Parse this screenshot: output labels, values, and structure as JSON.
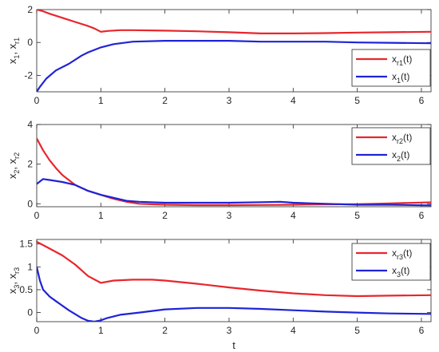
{
  "chart_data": [
    {
      "type": "line",
      "ylabel": {
        "p1": "x",
        "s1": "1",
        "p2": ", x",
        "s2": "r1"
      },
      "xlim": [
        0,
        6.15
      ],
      "ylim": [
        -3,
        2
      ],
      "xticks": [
        "0",
        "1",
        "2",
        "3",
        "4",
        "5",
        "6"
      ],
      "yticks": [
        "-2",
        "0",
        "2"
      ],
      "ytick_values": [
        -2,
        0,
        2
      ],
      "grid": false,
      "legend_position": "right",
      "series": [
        {
          "name": {
            "p": "x",
            "s": "r1",
            "t": "(t)"
          },
          "color": "#e8262d",
          "x": [
            0,
            0.1,
            0.2,
            0.4,
            0.6,
            0.8,
            0.9,
            1.0,
            1.1,
            1.3,
            1.5,
            2.0,
            2.5,
            3.0,
            3.5,
            4.0,
            4.5,
            5.0,
            5.5,
            6.15
          ],
          "y": [
            2.0,
            1.9,
            1.75,
            1.5,
            1.25,
            1.0,
            0.85,
            0.65,
            0.7,
            0.75,
            0.75,
            0.72,
            0.68,
            0.62,
            0.55,
            0.55,
            0.57,
            0.6,
            0.62,
            0.65
          ]
        },
        {
          "name": {
            "p": "x",
            "s": "1",
            "t": "(t)"
          },
          "color": "#1f23d6",
          "x": [
            0,
            0.05,
            0.15,
            0.3,
            0.5,
            0.7,
            0.8,
            0.9,
            1.0,
            1.2,
            1.5,
            2.0,
            2.5,
            3.0,
            3.5,
            4.0,
            4.5,
            5.0,
            5.5,
            6.15
          ],
          "y": [
            -3.0,
            -2.7,
            -2.2,
            -1.7,
            -1.3,
            -0.8,
            -0.6,
            -0.45,
            -0.3,
            -0.1,
            0.05,
            0.1,
            0.1,
            0.1,
            0.05,
            0.05,
            0.05,
            0.0,
            -0.02,
            -0.05
          ]
        }
      ]
    },
    {
      "type": "line",
      "ylabel": {
        "p1": "x",
        "s1": "2",
        "p2": ", x",
        "s2": "r2"
      },
      "xlim": [
        0,
        6.15
      ],
      "ylim": [
        -0.15,
        4
      ],
      "xticks": [
        "0",
        "1",
        "2",
        "3",
        "4",
        "5",
        "6"
      ],
      "yticks": [
        "0",
        "2",
        "4"
      ],
      "ytick_values": [
        0,
        2,
        4
      ],
      "grid": false,
      "legend_position": "top-right",
      "series": [
        {
          "name": {
            "p": "x",
            "s": "r2",
            "t": "(t)"
          },
          "color": "#e8262d",
          "x": [
            0,
            0.1,
            0.2,
            0.3,
            0.4,
            0.6,
            0.8,
            1.0,
            1.2,
            1.4,
            1.6,
            2.0,
            2.5,
            3.0,
            3.5,
            4.0,
            4.5,
            5.0,
            5.5,
            6.15
          ],
          "y": [
            3.3,
            2.7,
            2.2,
            1.8,
            1.45,
            0.95,
            0.65,
            0.45,
            0.25,
            0.1,
            0.0,
            -0.05,
            -0.07,
            -0.07,
            -0.06,
            -0.05,
            -0.03,
            -0.02,
            0.02,
            0.07
          ]
        },
        {
          "name": {
            "p": "x",
            "s": "2",
            "t": "(t)"
          },
          "color": "#1f23d6",
          "x": [
            0,
            0.1,
            0.2,
            0.4,
            0.6,
            0.8,
            1.0,
            1.2,
            1.4,
            1.6,
            2.0,
            2.5,
            3.0,
            3.5,
            3.8,
            4.0,
            4.5,
            5.0,
            5.5,
            6.15
          ],
          "y": [
            1.0,
            1.25,
            1.2,
            1.1,
            0.95,
            0.65,
            0.45,
            0.3,
            0.15,
            0.1,
            0.05,
            0.05,
            0.05,
            0.08,
            0.1,
            0.05,
            0.0,
            -0.05,
            -0.05,
            -0.08
          ]
        }
      ]
    },
    {
      "type": "line",
      "ylabel": {
        "p1": "x",
        "s1": "3",
        "p2": ", x",
        "s2": "r3"
      },
      "xlabel": "t",
      "xlim": [
        0,
        6.15
      ],
      "ylim": [
        -0.2,
        1.6
      ],
      "xticks": [
        "0",
        "1",
        "2",
        "3",
        "4",
        "5",
        "6"
      ],
      "yticks": [
        "0",
        "0.5",
        "1",
        "1.5"
      ],
      "ytick_values": [
        0,
        0.5,
        1,
        1.5
      ],
      "grid": false,
      "legend_position": "top-right",
      "series": [
        {
          "name": {
            "p": "x",
            "s": "r3",
            "t": "(t)"
          },
          "color": "#e8262d",
          "x": [
            0,
            0.2,
            0.4,
            0.6,
            0.8,
            1.0,
            1.2,
            1.5,
            1.8,
            2.0,
            2.5,
            3.0,
            3.5,
            4.0,
            4.5,
            5.0,
            5.5,
            6.15
          ],
          "y": [
            1.55,
            1.4,
            1.25,
            1.05,
            0.8,
            0.65,
            0.7,
            0.72,
            0.72,
            0.7,
            0.63,
            0.55,
            0.48,
            0.42,
            0.38,
            0.36,
            0.37,
            0.38
          ]
        },
        {
          "name": {
            "p": "x",
            "s": "3",
            "t": "(t)"
          },
          "color": "#1f23d6",
          "x": [
            0,
            0.05,
            0.1,
            0.2,
            0.3,
            0.5,
            0.7,
            0.8,
            0.9,
            1.0,
            1.1,
            1.3,
            1.6,
            2.0,
            2.5,
            3.0,
            3.5,
            4.0,
            4.5,
            5.0,
            5.5,
            6.15
          ],
          "y": [
            1.0,
            0.7,
            0.5,
            0.35,
            0.25,
            0.05,
            -0.12,
            -0.18,
            -0.2,
            -0.17,
            -0.12,
            -0.05,
            0.0,
            0.07,
            0.1,
            0.1,
            0.08,
            0.05,
            0.02,
            0.0,
            -0.02,
            -0.03
          ]
        }
      ]
    }
  ]
}
